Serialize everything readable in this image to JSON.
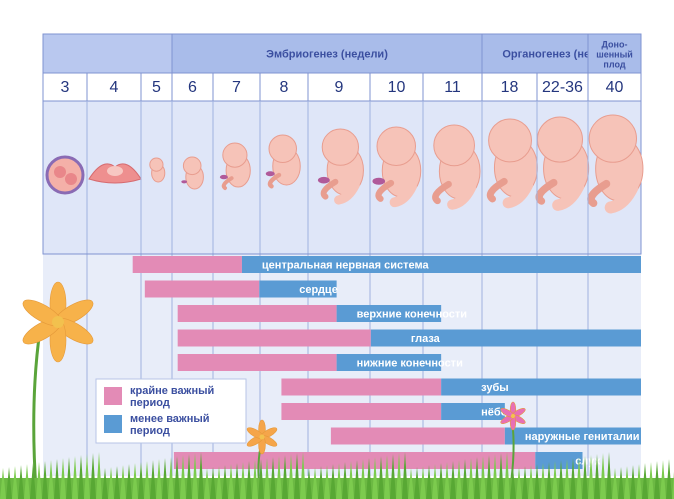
{
  "colors": {
    "header_bg": "#a9bcea",
    "header_border": "#7f93d1",
    "week_row_bg": "#ffffff",
    "embryo_row_bg": "#dfe6f8",
    "grid_bg": "#e8edf9",
    "critical": "#e38bb6",
    "less_critical": "#5a9bd4",
    "stage_text": "#3b4fa0",
    "week_text": "#24367e",
    "bar_text": "#ffffff"
  },
  "stages": [
    {
      "label": "",
      "from": 0,
      "to": 3
    },
    {
      "label": "Эмбриогенез (недели)",
      "from": 3,
      "to": 9
    },
    {
      "label": "Органогенез (недели)",
      "from": 9,
      "to": 12
    },
    {
      "label": "Доно-\nшенный\nплод",
      "from": 12,
      "to": 13
    }
  ],
  "weeks": [
    "3",
    "4",
    "5",
    "6",
    "7",
    "8",
    "9",
    "10",
    "11",
    "18",
    "22-36",
    "40"
  ],
  "chart_data": {
    "type": "gantt",
    "categories": [
      "3",
      "4",
      "5",
      "6",
      "7",
      "8",
      "9",
      "10",
      "11",
      "18",
      "22-36",
      "40"
    ],
    "series": [
      {
        "name": "крайне важный период",
        "color": "#e38bb6"
      },
      {
        "name": "менее важный период",
        "color": "#5a9bd4"
      }
    ],
    "rows": [
      {
        "label": "центральная нервная система",
        "critical": [
          2.0,
          5.0
        ],
        "less": [
          5.0,
          13.0
        ]
      },
      {
        "label": "сердце",
        "critical": [
          2.3,
          5.4
        ],
        "less": [
          5.4,
          7.0
        ]
      },
      {
        "label": "верхние конечности",
        "critical": [
          3.4,
          7.0
        ],
        "less": [
          7.0,
          9.0
        ]
      },
      {
        "label": "глаза",
        "critical": [
          3.4,
          7.6
        ],
        "less": [
          7.6,
          13.0
        ]
      },
      {
        "label": "нижние конечности",
        "critical": [
          3.4,
          7.0
        ],
        "less": [
          7.0,
          9.0
        ]
      },
      {
        "label": "зубы",
        "critical": [
          5.9,
          9.0
        ],
        "less": [
          9.0,
          13.0
        ]
      },
      {
        "label": "нёбо",
        "critical": [
          5.9,
          9.0
        ],
        "less": [
          9.0,
          10.2
        ]
      },
      {
        "label": "наружные гениталии",
        "critical": [
          6.9,
          10.2
        ],
        "less": [
          10.2,
          13.0
        ]
      },
      {
        "label": "слух",
        "critical": [
          3.3,
          10.8
        ],
        "less": [
          10.8,
          11.8
        ]
      }
    ]
  },
  "legend": {
    "critical_label": "крайне важный\nпериод",
    "less_label": "менее важный\nпериод"
  },
  "icons": [
    "zygote-icon",
    "implanting-embryo-icon",
    "embryo-icon",
    "fetus-icon",
    "lily-flower-icon",
    "grass-icon"
  ]
}
